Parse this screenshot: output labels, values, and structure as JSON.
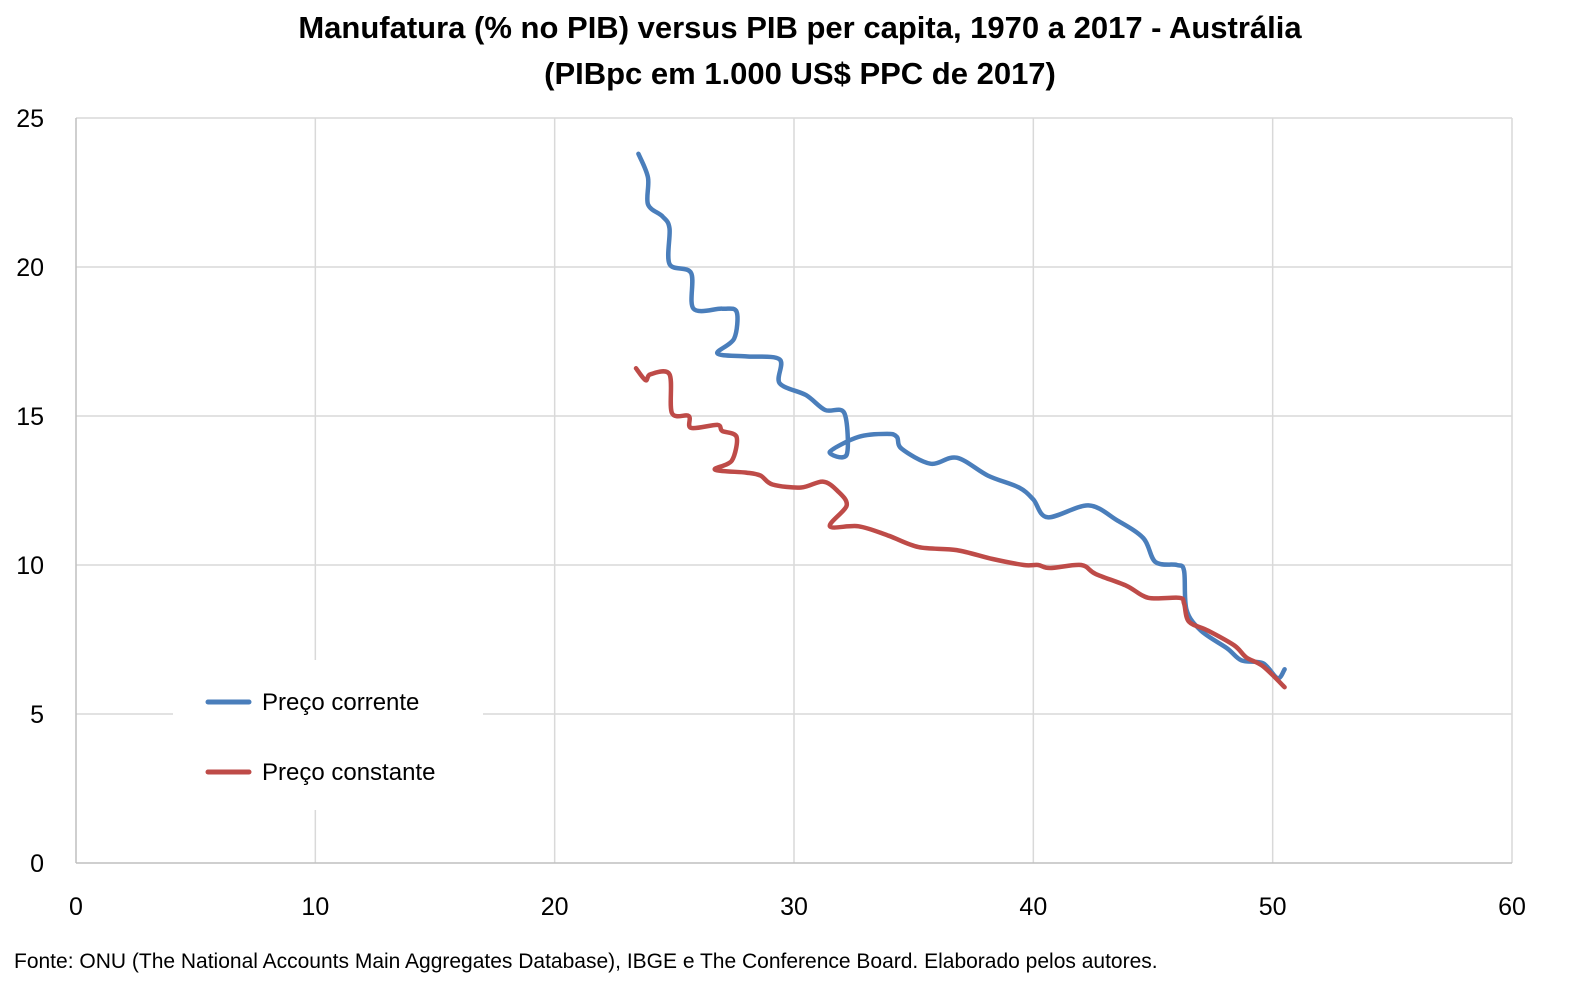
{
  "title": {
    "line1": "Manufatura (% no PIB) versus PIB per capita, 1970 a 2017 - Austrália",
    "line2": "(PIBpc em 1.000 US$ PPC de 2017)"
  },
  "source": "Fonte: ONU (The National Accounts Main Aggregates Database), IBGE e The Conference Board. Elaborado pelos autores.",
  "colors": {
    "series1": "#4a7ebb",
    "series2": "#be4b48",
    "grid": "#d9d9d9",
    "axis": "#bfbfbf"
  },
  "chart_data": {
    "type": "line",
    "title": "Manufatura (% no PIB) versus PIB per capita, 1970 a 2017 - Austrália (PIBpc em 1.000 US$ PPC de 2017)",
    "xlabel": "",
    "ylabel": "",
    "xlim": [
      0,
      60
    ],
    "ylim": [
      0,
      25
    ],
    "xticks": [
      0,
      10,
      20,
      30,
      40,
      50,
      60
    ],
    "yticks": [
      0,
      5,
      10,
      15,
      20,
      25
    ],
    "grid": true,
    "legend_position": "bottom-left",
    "series": [
      {
        "name": "Preço corrente",
        "color": "#4a7ebb",
        "points": [
          [
            23.5,
            23.8
          ],
          [
            23.9,
            23.0
          ],
          [
            23.9,
            22.1
          ],
          [
            24.5,
            21.7
          ],
          [
            24.8,
            21.3
          ],
          [
            24.8,
            20.1
          ],
          [
            25.7,
            19.8
          ],
          [
            25.8,
            18.6
          ],
          [
            27.0,
            18.6
          ],
          [
            27.6,
            18.5
          ],
          [
            27.5,
            17.6
          ],
          [
            26.8,
            17.1
          ],
          [
            28.0,
            17.0
          ],
          [
            29.4,
            16.9
          ],
          [
            29.4,
            16.1
          ],
          [
            30.5,
            15.7
          ],
          [
            31.3,
            15.2
          ],
          [
            32.1,
            15.1
          ],
          [
            32.2,
            13.7
          ],
          [
            31.5,
            13.8
          ],
          [
            32.7,
            14.3
          ],
          [
            33.9,
            14.4
          ],
          [
            34.3,
            14.3
          ],
          [
            34.5,
            13.9
          ],
          [
            35.7,
            13.4
          ],
          [
            36.8,
            13.6
          ],
          [
            38.1,
            13.0
          ],
          [
            39.4,
            12.6
          ],
          [
            40.0,
            12.2
          ],
          [
            40.6,
            11.6
          ],
          [
            42.3,
            12.0
          ],
          [
            43.5,
            11.5
          ],
          [
            44.6,
            10.9
          ],
          [
            45.1,
            10.1
          ],
          [
            46.0,
            10.0
          ],
          [
            46.3,
            9.8
          ],
          [
            46.4,
            8.5
          ],
          [
            47.0,
            7.8
          ],
          [
            48.1,
            7.2
          ],
          [
            48.7,
            6.8
          ],
          [
            49.6,
            6.7
          ],
          [
            50.2,
            6.2
          ],
          [
            50.5,
            6.5
          ]
        ]
      },
      {
        "name": "Preço constante",
        "color": "#be4b48",
        "points": [
          [
            23.4,
            16.6
          ],
          [
            23.8,
            16.2
          ],
          [
            24.0,
            16.4
          ],
          [
            24.8,
            16.4
          ],
          [
            24.9,
            15.1
          ],
          [
            25.6,
            15.0
          ],
          [
            25.7,
            14.6
          ],
          [
            26.8,
            14.7
          ],
          [
            27.0,
            14.5
          ],
          [
            27.6,
            14.3
          ],
          [
            27.4,
            13.5
          ],
          [
            26.7,
            13.2
          ],
          [
            28.0,
            13.1
          ],
          [
            28.6,
            13.0
          ],
          [
            29.1,
            12.7
          ],
          [
            30.3,
            12.6
          ],
          [
            31.2,
            12.8
          ],
          [
            31.8,
            12.5
          ],
          [
            32.2,
            12.0
          ],
          [
            31.5,
            11.3
          ],
          [
            32.7,
            11.3
          ],
          [
            33.9,
            11.0
          ],
          [
            35.2,
            10.6
          ],
          [
            36.8,
            10.5
          ],
          [
            38.3,
            10.2
          ],
          [
            39.6,
            10.0
          ],
          [
            40.2,
            10.0
          ],
          [
            40.7,
            9.9
          ],
          [
            42.0,
            10.0
          ],
          [
            42.6,
            9.7
          ],
          [
            43.9,
            9.3
          ],
          [
            44.8,
            8.9
          ],
          [
            46.1,
            8.9
          ],
          [
            46.3,
            8.7
          ],
          [
            46.5,
            8.1
          ],
          [
            47.3,
            7.8
          ],
          [
            48.4,
            7.3
          ],
          [
            48.9,
            6.9
          ],
          [
            49.6,
            6.6
          ],
          [
            50.5,
            5.9
          ]
        ]
      }
    ]
  }
}
